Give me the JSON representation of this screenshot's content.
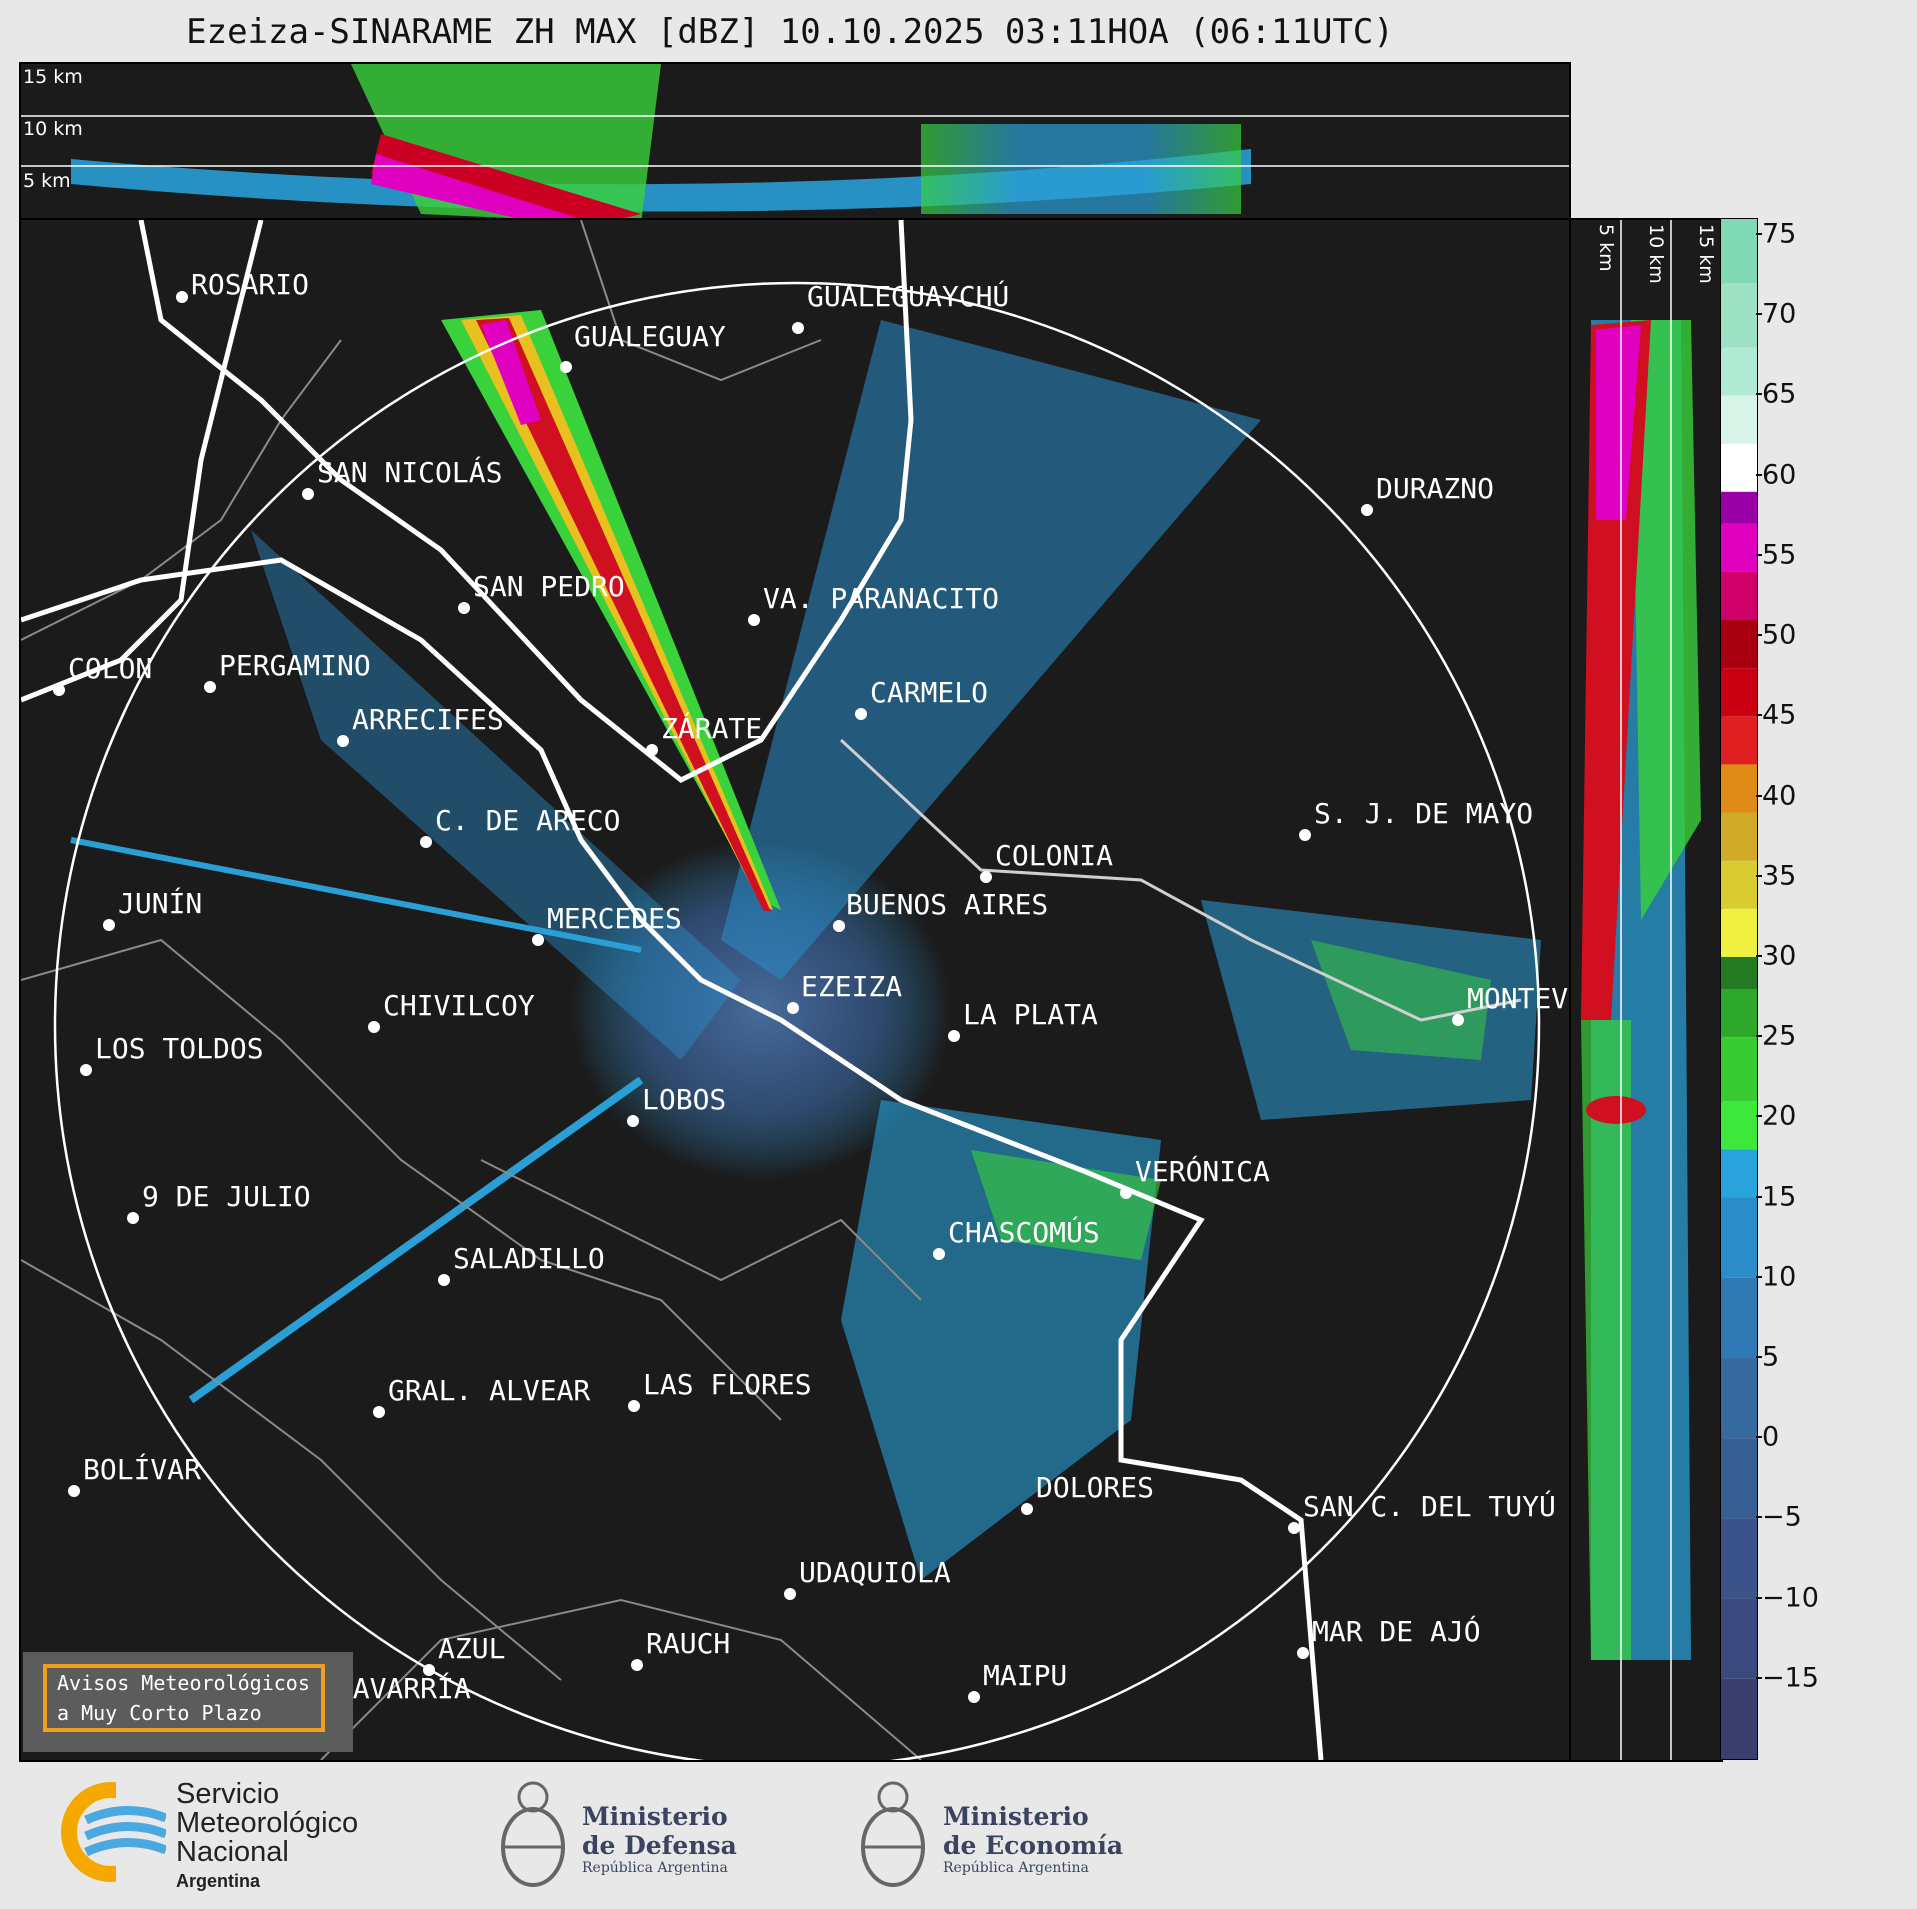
{
  "title": "Ezeiza-SINARAME ZH MAX [dBZ] 10.10.2025 03:11HOA (06:11UTC)",
  "height_labels": [
    "15 km",
    "10 km",
    "5 km"
  ],
  "side_labels": [
    "5 km",
    "10 km",
    "15 km"
  ],
  "colorbar": {
    "ticks": [
      "75",
      "70",
      "65",
      "60",
      "55",
      "50",
      "45",
      "40",
      "35",
      "30",
      "25",
      "20",
      "15",
      "10",
      "5",
      "0",
      "−5",
      "−10",
      "−15"
    ],
    "range": [
      -20,
      76
    ]
  },
  "cities": [
    {
      "name": "ROSARIO"
    },
    {
      "name": "GUALEGUAYCHÚ"
    },
    {
      "name": "GUALEGUAY"
    },
    {
      "name": "SAN NICOLÁS"
    },
    {
      "name": "DURAZNO"
    },
    {
      "name": "SAN PEDRO"
    },
    {
      "name": "VA. PARANACITO"
    },
    {
      "name": "COLON"
    },
    {
      "name": "PERGAMINO"
    },
    {
      "name": "CARMELO"
    },
    {
      "name": "ARRECIFES"
    },
    {
      "name": "ZÁRATE"
    },
    {
      "name": "S. J. DE MAYO"
    },
    {
      "name": "C. DE ARECO"
    },
    {
      "name": "COLONIA"
    },
    {
      "name": "JUNÍN"
    },
    {
      "name": "BUENOS AIRES"
    },
    {
      "name": "MERCEDES"
    },
    {
      "name": "MONTEVIDEO"
    },
    {
      "name": "CHIVILCOY"
    },
    {
      "name": "EZEIZA"
    },
    {
      "name": "LA PLATA"
    },
    {
      "name": "LOS TOLDOS"
    },
    {
      "name": "LOBOS"
    },
    {
      "name": "VERÓNICA"
    },
    {
      "name": "9 DE JULIO"
    },
    {
      "name": "CHASCOMÚS"
    },
    {
      "name": "SALADILLO"
    },
    {
      "name": "GRAL. ALVEAR"
    },
    {
      "name": "LAS FLORES"
    },
    {
      "name": "BOLÍVAR"
    },
    {
      "name": "DOLORES"
    },
    {
      "name": "SAN C. DEL TUYÚ"
    },
    {
      "name": "UDAQUIOLA"
    },
    {
      "name": "MAR DE AJÓ"
    },
    {
      "name": "AZUL"
    },
    {
      "name": "RAUCH"
    },
    {
      "name": "OLAVARRÍA"
    },
    {
      "name": "MAIPU"
    }
  ],
  "warning_box": {
    "line1": "Avisos Meteorológicos",
    "line2": "a Muy Corto Plazo"
  },
  "footer": {
    "smn": [
      "Servicio",
      "Meteorológico",
      "Nacional",
      "Argentina"
    ],
    "defensa": [
      "Ministerio",
      "de Defensa",
      "República Argentina"
    ],
    "economia": [
      "Ministerio",
      "de Economía",
      "República Argentina"
    ]
  },
  "colors": {
    "panel_bg": "#1b1b1b",
    "range_ring": "#ffffff",
    "coast": "#ffffff",
    "borders": "#8a8a8a"
  }
}
